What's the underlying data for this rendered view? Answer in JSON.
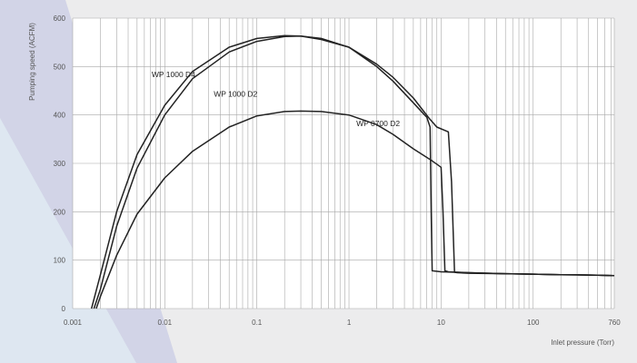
{
  "chart_data": {
    "type": "line",
    "title": "",
    "xlabel": "Inlet pressure (Torr)",
    "ylabel": "Pumping speed (ACFM)",
    "x_scale": "log",
    "xlim": [
      0.001,
      760
    ],
    "ylim": [
      0,
      600
    ],
    "grid": true,
    "legend": "none",
    "x_ticks": [
      0.001,
      0.01,
      0.1,
      1,
      10,
      100,
      760
    ],
    "x_tick_labels": [
      "0.001",
      "0.01",
      "0.1",
      "1",
      "10",
      "100",
      "760"
    ],
    "y_ticks": [
      0,
      100,
      200,
      300,
      400,
      500,
      600
    ],
    "y_tick_labels": [
      "0",
      "100",
      "200",
      "300",
      "400",
      "500",
      "600"
    ],
    "colors": {
      "curve": "#222222",
      "grid": "#a8a8a8",
      "plot_bg": "#ffffff",
      "page_bg": "#ececed"
    },
    "series": [
      {
        "name": "WP 1000 D4",
        "x": [
          0.0016,
          0.002,
          0.003,
          0.005,
          0.01,
          0.02,
          0.05,
          0.1,
          0.2,
          0.3,
          0.5,
          1,
          2,
          3,
          5,
          7.5,
          9,
          12,
          13,
          14,
          15,
          20,
          50,
          100,
          200,
          500,
          760
        ],
        "y": [
          0,
          70,
          200,
          318,
          420,
          490,
          540,
          558,
          564,
          563,
          556,
          540,
          505,
          478,
          435,
          392,
          375,
          365,
          262,
          75,
          74,
          73,
          72,
          71,
          70,
          69,
          68
        ]
      },
      {
        "name": "WP 1000 D2",
        "x": [
          0.0017,
          0.002,
          0.003,
          0.005,
          0.01,
          0.02,
          0.05,
          0.1,
          0.2,
          0.3,
          0.5,
          1,
          2,
          3,
          5,
          7,
          7.6,
          7.8,
          8,
          10,
          20,
          50,
          100,
          200,
          500,
          760
        ],
        "y": [
          0,
          40,
          170,
          290,
          400,
          475,
          530,
          552,
          562,
          563,
          558,
          540,
          500,
          470,
          425,
          395,
          375,
          200,
          78,
          76,
          74,
          72,
          71,
          70,
          69,
          68
        ]
      },
      {
        "name": "WP 0700 D2",
        "x": [
          0.0018,
          0.002,
          0.003,
          0.005,
          0.01,
          0.02,
          0.05,
          0.1,
          0.2,
          0.3,
          0.5,
          1,
          2,
          3,
          5,
          8,
          10,
          10.5,
          11,
          12,
          20,
          50,
          100,
          200,
          500,
          760
        ],
        "y": [
          0,
          25,
          110,
          195,
          270,
          325,
          375,
          398,
          407,
          408,
          407,
          400,
          380,
          360,
          330,
          305,
          292,
          200,
          78,
          76,
          74,
          72,
          71,
          70,
          69,
          68
        ]
      }
    ],
    "annotations": [
      {
        "text": "WP 1000 D4",
        "x": 0.0072,
        "y": 478
      },
      {
        "text": "WP 1000 D2",
        "x": 0.034,
        "y": 438
      },
      {
        "text": "WP 0700 D2",
        "x": 1.2,
        "y": 377
      }
    ]
  }
}
